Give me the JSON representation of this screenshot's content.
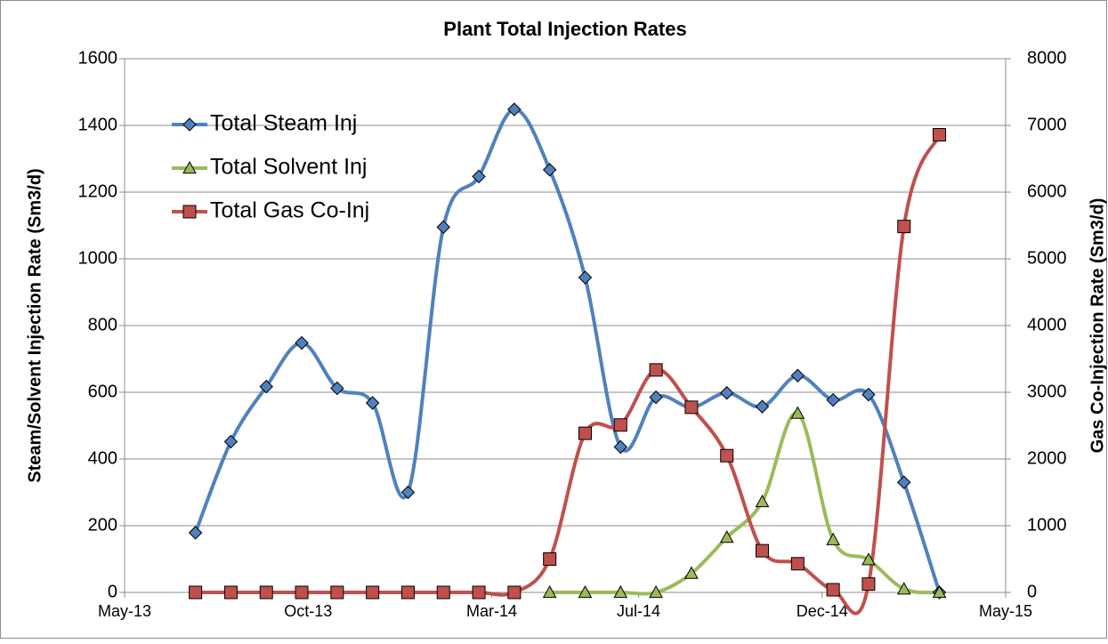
{
  "chart_data": {
    "type": "line",
    "title": "Plant Total Injection Rates",
    "y_label": "Steam/Solvent Injection Rate (Sm3/d)",
    "y2_label": "Gas Co-Injection Rate (Sm3/d)",
    "x": [
      "Jun-13",
      "Jul-13",
      "Aug-13",
      "Sep-13",
      "Oct-13",
      "Nov-13",
      "Dec-13",
      "Jan-14",
      "Feb-14",
      "Mar-14",
      "Apr-14",
      "May-14",
      "Jun-14",
      "Jul-14",
      "Aug-14",
      "Sep-14",
      "Oct-14",
      "Nov-14",
      "Dec-14",
      "Jan-15",
      "Feb-15",
      "Mar-15"
    ],
    "xlim": [
      "May-13",
      "May-15"
    ],
    "xticks": [
      "May-13",
      "Oct-13",
      "Mar-14",
      "Jul-14",
      "Dec-14",
      "May-15"
    ],
    "ylim": [
      0,
      1600
    ],
    "yticks": [
      0,
      200,
      400,
      600,
      800,
      1000,
      1200,
      1400,
      1600
    ],
    "y2lim": [
      0,
      8000
    ],
    "y2ticks": [
      0,
      1000,
      2000,
      3000,
      4000,
      5000,
      6000,
      7000,
      8000
    ],
    "grid": true,
    "smooth": true,
    "legend": "upper-left",
    "series": [
      {
        "name": "Total Steam Inj",
        "color": "#4f81bd",
        "marker": "diamond",
        "values": [
          179,
          452,
          617,
          748,
          612,
          568,
          300,
          1095,
          1247,
          1448,
          1267,
          944,
          436,
          585,
          555,
          598,
          557,
          650,
          577,
          593,
          330,
          0
        ]
      },
      {
        "name": "Total Solvent Inj",
        "color": "#9bbb59",
        "marker": "triangle",
        "values": [
          null,
          null,
          null,
          null,
          null,
          null,
          null,
          null,
          null,
          null,
          0,
          0,
          0,
          0,
          57,
          165,
          272,
          537,
          158,
          98,
          10,
          0
        ]
      },
      {
        "name": "Total Gas Co-Inj",
        "color": "#c0504d",
        "marker": "square",
        "axis": "y2",
        "values": [
          0,
          0,
          0,
          0,
          0,
          0,
          0,
          0,
          0,
          0,
          500,
          2385,
          2510,
          3335,
          2775,
          2050,
          625,
          430,
          40,
          125,
          5485,
          6860
        ]
      }
    ]
  }
}
